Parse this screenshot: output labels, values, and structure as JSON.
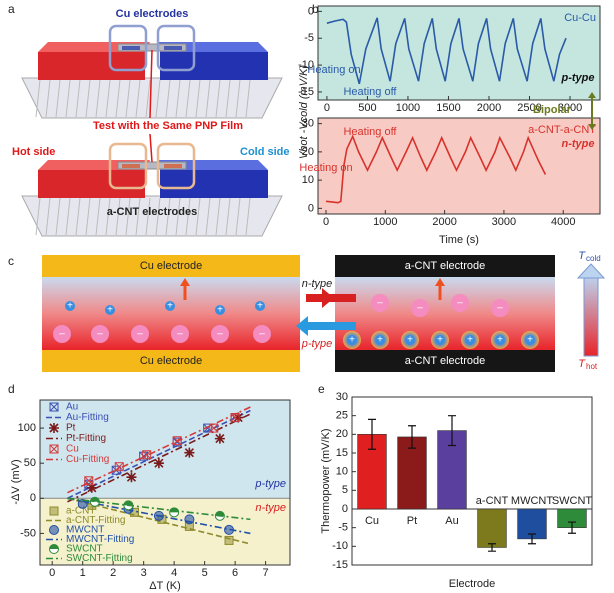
{
  "panels": {
    "a": {
      "label": "a",
      "top_label": "Cu electrodes",
      "center_label": "Test with the Same PNP Film",
      "hot": "Hot side",
      "cold": "Cold side",
      "bottom_label": "a-CNT electrodes"
    },
    "b": {
      "label": "b",
      "ylabel": "Vhot -Vcold (mV/K)"
    },
    "c": {
      "label": "c",
      "left_top": "Cu electrode",
      "left_bottom": "Cu electrode",
      "right_top": "a-CNT electrode",
      "right_bottom": "a-CNT electrode",
      "arrow_n": "n-type",
      "arrow_p": "p-type",
      "t_cold_main": "T",
      "t_cold_sub": "cold",
      "t_hot_main": "T",
      "t_hot_sub": "hot",
      "cation": "+",
      "anion": "–"
    },
    "d": {
      "label": "d"
    },
    "e": {
      "label": "e"
    }
  },
  "chart_data": [
    {
      "type": "line",
      "background": "#c4e6df",
      "annotations": [
        "Heating on",
        "Heating off",
        "p-type",
        "Bipolar"
      ],
      "xlim": [
        -110,
        3370
      ],
      "ylim": [
        -16.5,
        1
      ],
      "xticks": [
        0,
        500,
        1000,
        1500,
        2000,
        2500,
        3000
      ],
      "yticks": [
        0,
        -5,
        -10,
        -15
      ],
      "series": [
        {
          "name": "Cu-Cu",
          "color": "#2a5aa8",
          "x": [
            0,
            100,
            200,
            240,
            300,
            400,
            480,
            620,
            670,
            780,
            850,
            960,
            1010,
            1130,
            1200,
            1300,
            1350,
            1460,
            1530,
            1630,
            1680,
            1800,
            1870,
            1970,
            2020,
            2130,
            2200,
            2300,
            2350,
            2470,
            2540,
            2640,
            2690,
            2800,
            2870,
            2950
          ],
          "values": [
            -2.2,
            -1.8,
            -1.5,
            -2,
            -8,
            -13.5,
            -7,
            -1.2,
            -7,
            -13,
            -6,
            -1.3,
            -7,
            -13,
            -6,
            -1.3,
            -7,
            -13,
            -6,
            -1.3,
            -7,
            -13,
            -6,
            -1.3,
            -7,
            -13,
            -6,
            -1.3,
            -7,
            -13,
            -6,
            -1.3,
            -7,
            -13,
            -8,
            -5
          ]
        }
      ]
    },
    {
      "type": "line",
      "background": "#f7cbc4",
      "xlabel": "Time (s)",
      "annotations": [
        "Heating off",
        "Heating on",
        "n-type"
      ],
      "xlim": [
        -135,
        4620
      ],
      "ylim": [
        -2,
        32
      ],
      "xticks": [
        0,
        1000,
        2000,
        3000,
        4000
      ],
      "yticks": [
        0,
        10,
        20,
        30
      ],
      "series": [
        {
          "name": "a-CNT-a-CNT",
          "color": "#d8322c",
          "x": [
            0,
            100,
            200,
            250,
            300,
            350,
            450,
            550,
            700,
            850,
            950,
            1100,
            1200,
            1350,
            1460,
            1600,
            1700,
            1850,
            1950,
            2100,
            2200,
            2350,
            2440,
            2600,
            2700,
            2850,
            2930,
            3100,
            3200,
            3330,
            3410,
            3580,
            3700
          ],
          "values": [
            2.5,
            2.3,
            2,
            2.5,
            15,
            21,
            25.5,
            20,
            13.5,
            20,
            25,
            18,
            13.5,
            20,
            25,
            18,
            13.5,
            20,
            25,
            18,
            13.5,
            20,
            25,
            18,
            13.5,
            20,
            25,
            18,
            13.5,
            20,
            25,
            17,
            12
          ]
        }
      ]
    },
    {
      "type": "scatter",
      "xlabel": "ΔT (K)",
      "ylabel": "-ΔV (mV)",
      "annotations": [
        "p-type",
        "n-type"
      ],
      "xlim": [
        -0.4,
        7.8
      ],
      "ylim": [
        -95,
        140
      ],
      "xticks": [
        0,
        1,
        2,
        3,
        4,
        5,
        6,
        7
      ],
      "yticks": [
        -50,
        0,
        50,
        100
      ],
      "series": [
        {
          "name": "Au",
          "color": "#3b4fb5",
          "marker": "boxx",
          "x": [
            1.2,
            2.1,
            3.0,
            4.1,
            5.1,
            6.0
          ],
          "values": [
            20,
            40,
            60,
            80,
            100,
            115
          ]
        },
        {
          "name": "Au-Fitting",
          "color": "#3b4fb5",
          "linestyle": "dashed",
          "x": [
            0.5,
            6.5
          ],
          "values": [
            0,
            125
          ]
        },
        {
          "name": "Pt",
          "color": "#7a1a1a",
          "marker": "star",
          "x": [
            1.3,
            2.6,
            3.5,
            4.5,
            5.5,
            6.1
          ],
          "values": [
            15,
            30,
            50,
            65,
            85,
            115
          ]
        },
        {
          "name": "Pt-Fitting",
          "color": "#7a1a1a",
          "linestyle": "dashdot",
          "x": [
            0.5,
            6.5
          ],
          "values": [
            -5,
            120
          ]
        },
        {
          "name": "Cu",
          "color": "#d43a3a",
          "marker": "boxx",
          "x": [
            1.2,
            2.2,
            3.1,
            4.1,
            5.3,
            6.0
          ],
          "values": [
            25,
            45,
            62,
            82,
            100,
            115
          ]
        },
        {
          "name": "Cu-Fitting",
          "color": "#d43a3a",
          "linestyle": "dashdot",
          "x": [
            0.5,
            6.5
          ],
          "values": [
            8,
            130
          ]
        },
        {
          "name": "a-CNT",
          "color": "#8e8a2a",
          "marker": "square",
          "x": [
            1.3,
            2.7,
            3.6,
            4.5,
            5.8
          ],
          "values": [
            -10,
            -20,
            -30,
            -40,
            -60
          ]
        },
        {
          "name": "a-CNT-Fitting",
          "color": "#8e8a2a",
          "linestyle": "dashed",
          "x": [
            0.5,
            6.5
          ],
          "values": [
            0,
            -65
          ]
        },
        {
          "name": "MWCNT",
          "color": "#2150a8",
          "marker": "circle",
          "x": [
            1.0,
            2.5,
            3.5,
            4.5,
            5.8
          ],
          "values": [
            -8,
            -15,
            -25,
            -30,
            -45
          ]
        },
        {
          "name": "MWCNT-Fitting",
          "color": "#2150a8",
          "linestyle": "dashdot",
          "x": [
            0.5,
            6.5
          ],
          "values": [
            0,
            -50
          ]
        },
        {
          "name": "SWCNT",
          "color": "#2e8b3a",
          "marker": "half",
          "x": [
            1.4,
            2.5,
            4.0,
            5.5
          ],
          "values": [
            -5,
            -10,
            -20,
            -25
          ]
        },
        {
          "name": "SWCNT-Fitting",
          "color": "#2e8b3a",
          "linestyle": "dashdot",
          "x": [
            0.5,
            6.5
          ],
          "values": [
            0,
            -30
          ]
        }
      ]
    },
    {
      "type": "bar",
      "xlabel": "Electrode",
      "ylabel": "Thermopower (mV/K)",
      "categories": [
        "Cu",
        "Pt",
        "Au",
        "a-CNT",
        "MWCNT",
        "SWCNT"
      ],
      "values": [
        20,
        19.3,
        21,
        -10.3,
        -8,
        -5
      ],
      "errors": [
        4,
        3,
        4,
        1,
        1.3,
        1.5
      ],
      "colors": [
        "#e02020",
        "#8b1a1a",
        "#5b3f9e",
        "#7d7a1e",
        "#1f4e9e",
        "#2e8b3a"
      ],
      "ylim": [
        -15,
        30
      ],
      "yticks": [
        -15,
        -10,
        -5,
        0,
        5,
        10,
        15,
        20,
        25,
        30
      ]
    }
  ]
}
